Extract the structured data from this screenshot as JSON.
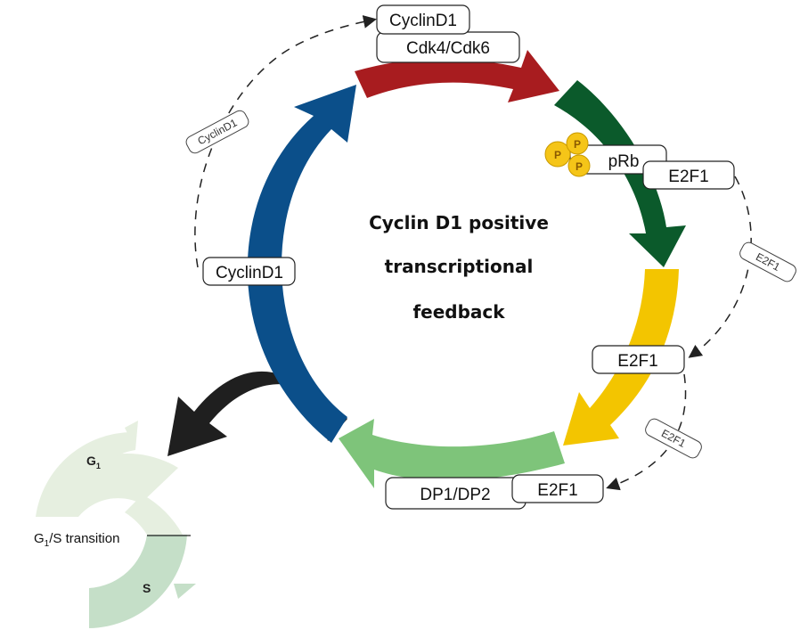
{
  "center_title": [
    "Cyclin D1 positive",
    "transcriptional",
    "feedback"
  ],
  "labels": {
    "cyclin_top": "CyclinD1",
    "cdk": "Cdk4/Cdk6",
    "prb": "pRb",
    "e2f1_top": "E2F1",
    "e2f1_mid": "E2F1",
    "e2f1_bottom": "E2F1",
    "dp": "DP1/DP2",
    "cyclin_left": "CyclinD1"
  },
  "phospho": "P",
  "dashed_labels": {
    "cyclin": "CyclinD1",
    "e2f1_a": "E2F1",
    "e2f1_b": "E2F1"
  },
  "cell_cycle": {
    "g1_main": "G",
    "g1_sub": "1",
    "transition_main": "G",
    "transition_sub": "1",
    "transition_rest": "/S transition",
    "s": "S"
  },
  "colors": {
    "red": "#a81c1f",
    "dark_green": "#0b5a2b",
    "yellow": "#f3c500",
    "light_green": "#7ec47a",
    "blue": "#0b4f8a",
    "black": "#1f1f1f",
    "phospho": "#f5c518",
    "g1_pale": "#e6efe0",
    "s_pale": "#c5dfc8"
  }
}
